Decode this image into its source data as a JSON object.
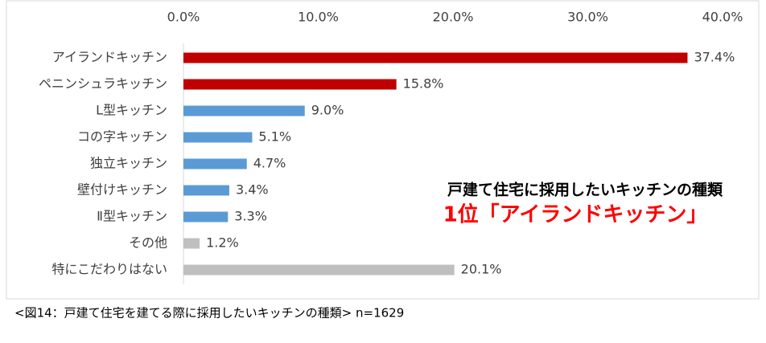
{
  "chart_data": {
    "type": "bar",
    "orientation": "horizontal",
    "categories": [
      "アイランドキッチン",
      "ペニンシュラキッチン",
      "L型キッチン",
      "コの字キッチン",
      "独立キッチン",
      "壁付けキッチン",
      "Ⅱ型キッチン",
      "その他",
      "特にこだわりはない"
    ],
    "values": [
      37.4,
      15.8,
      9.0,
      5.1,
      4.7,
      3.4,
      3.3,
      1.2,
      20.1
    ],
    "value_labels": [
      "37.4%",
      "15.8%",
      "9.0%",
      "5.1%",
      "4.7%",
      "3.4%",
      "3.3%",
      "1.2%",
      "20.1%"
    ],
    "colors": [
      "#c00000",
      "#c00000",
      "#5b9bd5",
      "#5b9bd5",
      "#5b9bd5",
      "#5b9bd5",
      "#5b9bd5",
      "#bfbfbf",
      "#bfbfbf"
    ],
    "xlim": [
      0,
      40
    ],
    "xticks": [
      {
        "value": 0,
        "label": "0.0%"
      },
      {
        "value": 10,
        "label": "10.0%"
      },
      {
        "value": 20,
        "label": "20.0%"
      },
      {
        "value": 30,
        "label": "30.0%"
      },
      {
        "value": 40,
        "label": "40.0%"
      }
    ],
    "annotations": [
      "戸建て住宅に採用したいキッチンの種類",
      "1位「アイランドキッチン」"
    ]
  },
  "caption": "<図14：戸建て住宅を建てる際に採用したいキッチンの種類> n=1629"
}
